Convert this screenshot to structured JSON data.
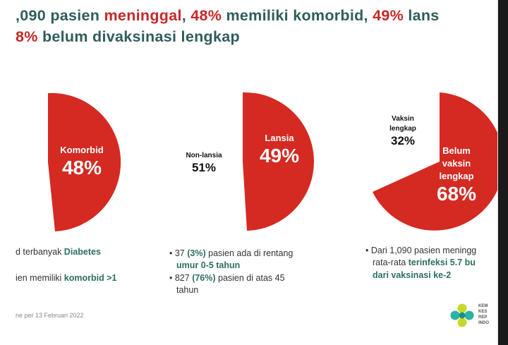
{
  "title": {
    "line1_a": ",090 pasien ",
    "line1_b": "meninggal",
    "line1_c": ", ",
    "line1_d": "48%",
    "line1_e": " memiliki komorbid, ",
    "line1_f": "49%",
    "line1_g": " lans",
    "line2_a": "8%",
    "line2_b": " belum divaksinasi lengkap"
  },
  "charts": {
    "comorbid": {
      "label": "Komorbid",
      "value_text": "48%"
    },
    "lansia": {
      "label": "Lansia",
      "value_text": "49%",
      "other_label": "Non-lansia",
      "other_value": "51%"
    },
    "vaksin": {
      "label_l1": "Belum",
      "label_l2": "vaksin",
      "label_l3": "lengkap",
      "value_text": "68%",
      "other_l1": "Vaksin",
      "other_l2": "lengkap",
      "other_value": "32%"
    }
  },
  "chart_data": [
    {
      "type": "pie",
      "categories": [
        "Komorbid"
      ],
      "values": [
        48
      ]
    },
    {
      "type": "pie",
      "categories": [
        "Lansia",
        "Non-lansia"
      ],
      "values": [
        49,
        51
      ]
    },
    {
      "type": "pie",
      "categories": [
        "Belum vaksin lengkap",
        "Vaksin lengkap"
      ],
      "values": [
        68,
        32
      ]
    }
  ],
  "bullets": {
    "col1": {
      "l1_a": "d terbanyak ",
      "l1_b": "Diabetes",
      "l2_a": "ien memiliki ",
      "l2_b": "komorbid >1"
    },
    "col2": {
      "l1_a": "• 37 ",
      "l1_b": "(3%)",
      "l1_c": " pasien ada di rentang",
      "l2": "umur 0-5 tahun",
      "l3_a": "• 827 ",
      "l3_b": "(76%)",
      "l3_c": " pasien di atas 45",
      "l4": "tahun"
    },
    "col3": {
      "l1": "• Dari 1,090 pasien meningg",
      "l2_a": "rata-rata ",
      "l2_b": "terinfeksi 5.7 bu",
      "l3": "dari vaksinasi ke-2"
    }
  },
  "footnote": "ne per 13 Februari 2022",
  "logo": {
    "icon": "kemenkes-logo-icon",
    "l1": "KEM",
    "l2": "KES",
    "l3": "REP",
    "l4": "INDO"
  },
  "colors": {
    "red": "#d42a22",
    "teal": "#2f5d5b",
    "accent_red_text": "#c62828"
  }
}
